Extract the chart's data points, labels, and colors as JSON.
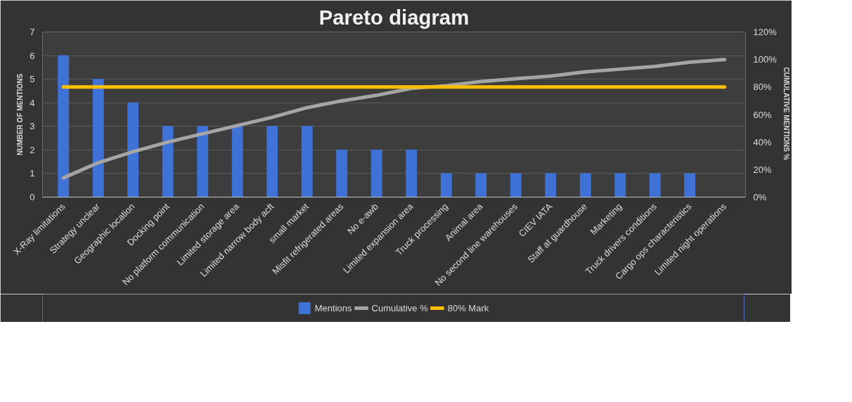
{
  "chart_data": {
    "type": "bar",
    "title": "Pareto diagram",
    "ylabel": "NUMBER OF MENTIONS",
    "y2label": "CUMULATIVE  MENTIONS %",
    "categories": [
      "X-Ray limitations",
      "Strategy unclear",
      "Geographic location",
      "Docking point",
      "No platform communication",
      "Limited storage area",
      "Limited narrow body acft",
      "small market",
      "Misfit refrigerated areas",
      "No e-awb",
      "Limited expansion area",
      "Truck processing",
      "Animal area",
      "No second line warehouses",
      "CIEV IATA",
      "Staff at guardhouse",
      "Marketing",
      "Truck drivers conditions",
      "Cargo ops characteristics",
      "Limited night operations"
    ],
    "series": [
      {
        "name": "Mentions",
        "color": "#3f72d6",
        "values": [
          6,
          5,
          4,
          3,
          3,
          3,
          3,
          3,
          2,
          2,
          2,
          1,
          1,
          1,
          1,
          1,
          1,
          1,
          1,
          0
        ]
      },
      {
        "name": "Cumulative %",
        "type": "line",
        "axis": "y2",
        "color": "#a5a5a5",
        "values": [
          14,
          25,
          33,
          40,
          46,
          52,
          58,
          65,
          70,
          74,
          79,
          81,
          84,
          86,
          88,
          91,
          93,
          95,
          98,
          100
        ]
      },
      {
        "name": "80% Mark",
        "type": "line",
        "axis": "y2",
        "color": "#ffc000",
        "values": [
          80,
          80,
          80,
          80,
          80,
          80,
          80,
          80,
          80,
          80,
          80,
          80,
          80,
          80,
          80,
          80,
          80,
          80,
          80,
          80
        ]
      }
    ],
    "ylim": [
      0,
      7
    ],
    "yticks": [
      0,
      1,
      2,
      3,
      4,
      5,
      6,
      7
    ],
    "y2lim": [
      0,
      120
    ],
    "y2ticks": [
      {
        "value": 0,
        "label": "0%"
      },
      {
        "value": 20,
        "label": "20%"
      },
      {
        "value": 40,
        "label": "40%"
      },
      {
        "value": 60,
        "label": "60%"
      },
      {
        "value": 80,
        "label": "80%"
      },
      {
        "value": 100,
        "label": "100%"
      },
      {
        "value": 120,
        "label": "120%"
      }
    ],
    "grid": "y",
    "legend": "bottom"
  }
}
